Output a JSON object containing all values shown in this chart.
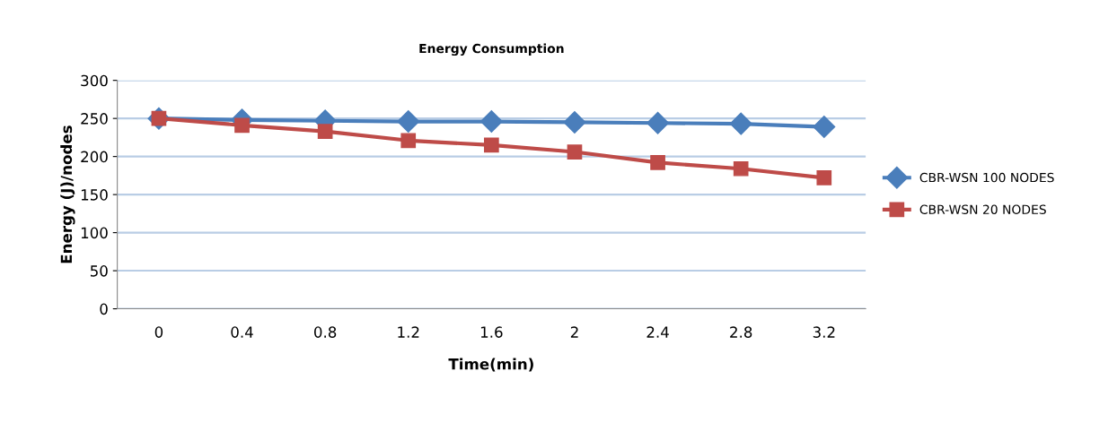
{
  "chart_data": {
    "type": "line",
    "title": "Energy Consumption",
    "xlabel": "Time(min)",
    "ylabel": "Energy (J)/nodes",
    "categories": [
      "0",
      "0.4",
      "0.8",
      "1.2",
      "1.6",
      "2",
      "2.4",
      "2.8",
      "3.2"
    ],
    "series": [
      {
        "name": "CBR-WSN 100 NODES",
        "color": "#4a7ebb",
        "marker": "diamond",
        "values": [
          250,
          248,
          247,
          246,
          246,
          245,
          244,
          243,
          239
        ]
      },
      {
        "name": "CBR-WSN 20 NODES",
        "color": "#be4b48",
        "marker": "square",
        "values": [
          250,
          241,
          233,
          221,
          215,
          206,
          192,
          184,
          172
        ]
      }
    ],
    "ylim": [
      0,
      300
    ],
    "yticks": [
      0,
      50,
      100,
      150,
      200,
      250,
      300
    ],
    "grid": "y",
    "legend": "right"
  }
}
